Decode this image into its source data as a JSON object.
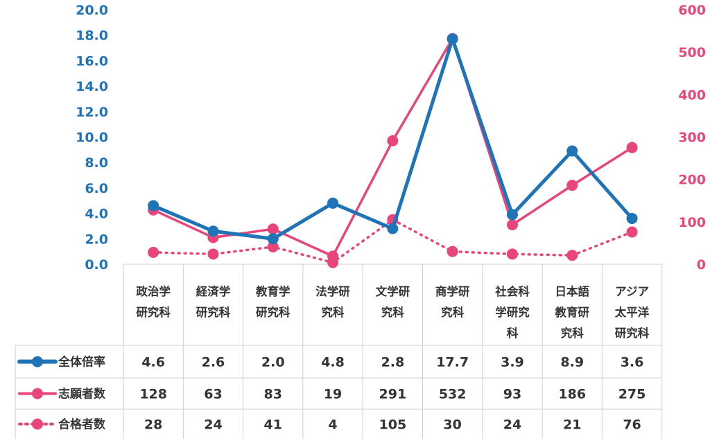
{
  "chart_data": {
    "type": "line",
    "categories": [
      [
        "政治学",
        "研究科"
      ],
      [
        "経済学",
        "研究科"
      ],
      [
        "教育学",
        "研究科"
      ],
      [
        "法学研",
        "究科"
      ],
      [
        "文学研",
        "究科"
      ],
      [
        "商学研",
        "究科"
      ],
      [
        "社会科",
        "学研究",
        "科"
      ],
      [
        "日本語",
        "教育研",
        "究科"
      ],
      [
        "アジア",
        "太平洋",
        "研究科"
      ]
    ],
    "y_left": {
      "ylim": [
        0,
        20
      ],
      "ticks": [
        "0.0",
        "2.0",
        "4.0",
        "6.0",
        "8.0",
        "10.0",
        "12.0",
        "14.0",
        "16.0",
        "18.0",
        "20.0"
      ]
    },
    "y_right": {
      "ylim": [
        0,
        600
      ],
      "ticks": [
        "0",
        "100",
        "200",
        "300",
        "400",
        "500",
        "600"
      ]
    },
    "series": [
      {
        "name": "全体倍率",
        "axis": "left",
        "style": "solid-thick",
        "color": "#1f73b7",
        "values": [
          4.6,
          2.6,
          2.0,
          4.8,
          2.8,
          17.7,
          3.9,
          8.9,
          3.6
        ],
        "labels": [
          "4.6",
          "2.6",
          "2.0",
          "4.8",
          "2.8",
          "17.7",
          "3.9",
          "8.9",
          "3.6"
        ]
      },
      {
        "name": "志願者数",
        "axis": "right",
        "style": "solid",
        "color": "#e8457a",
        "values": [
          128,
          63,
          83,
          19,
          291,
          532,
          93,
          186,
          275
        ],
        "labels": [
          "128",
          "63",
          "83",
          "19",
          "291",
          "532",
          "93",
          "186",
          "275"
        ]
      },
      {
        "name": "合格者数",
        "axis": "right",
        "style": "dotted",
        "color": "#e8457a",
        "values": [
          28,
          24,
          41,
          4,
          105,
          30,
          24,
          21,
          76
        ],
        "labels": [
          "28",
          "24",
          "41",
          "4",
          "105",
          "30",
          "24",
          "21",
          "76"
        ]
      }
    ],
    "data_table": true,
    "grid": false
  }
}
